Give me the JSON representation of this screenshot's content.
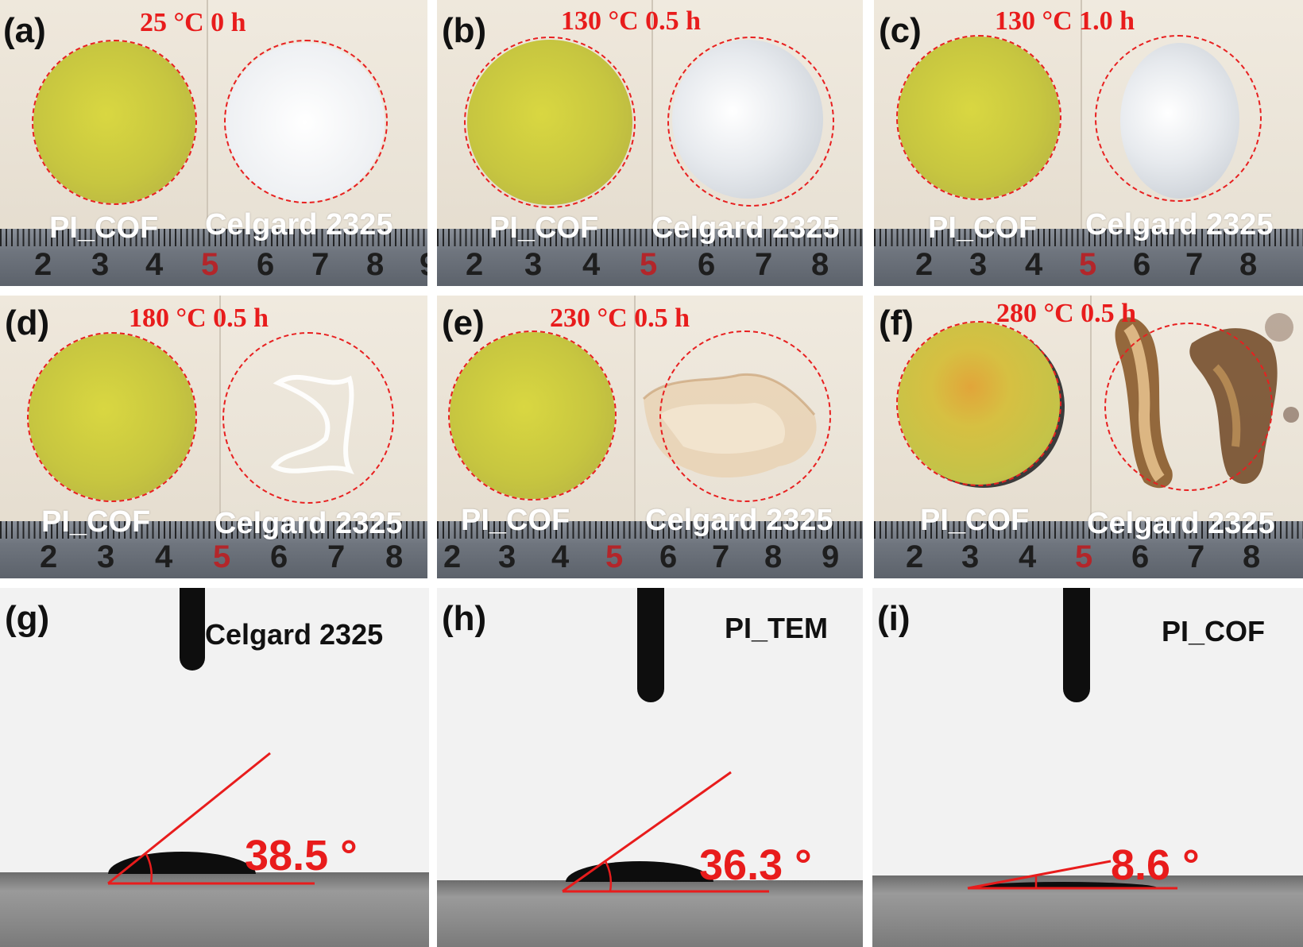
{
  "colors": {
    "annotation_red": "#e81c1c",
    "cof_yellow": "#c7c640",
    "celgard_white": "#eef0f3"
  },
  "ruler_numbers": {
    "p1": [
      "2",
      "3",
      "4",
      "5",
      "6",
      "7",
      "8",
      "9"
    ],
    "p2": [
      "2",
      "3",
      "4",
      "5",
      "6",
      "7",
      "8"
    ]
  },
  "panels": {
    "a": {
      "label": "(a)",
      "condition": "25 °C 0 h",
      "left_sample": "PI_COF",
      "right_sample": "Celgard 2325"
    },
    "b": {
      "label": "(b)",
      "condition": "130 °C 0.5 h",
      "left_sample": "PI_COF",
      "right_sample": "Celgard 2325"
    },
    "c": {
      "label": "(c)",
      "condition": "130 °C 1.0 h",
      "left_sample": "PI_COF",
      "right_sample": "Celgard 2325"
    },
    "d": {
      "label": "(d)",
      "condition": "180 °C 0.5 h",
      "left_sample": "PI_COF",
      "right_sample": "Celgard 2325"
    },
    "e": {
      "label": "(e)",
      "condition": "230 °C 0.5 h",
      "left_sample": "PI_COF",
      "right_sample": "Celgard 2325"
    },
    "f": {
      "label": "(f)",
      "condition": "280 °C 0.5 h",
      "left_sample": "PI_COF",
      "right_sample": "Celgard 2325"
    },
    "g": {
      "label": "(g)",
      "film": "Celgard 2325",
      "contact_angle": "38.5 °"
    },
    "h": {
      "label": "(h)",
      "film": "PI_TEM",
      "contact_angle": "36.3 °"
    },
    "i": {
      "label": "(i)",
      "film": "PI_COF",
      "contact_angle": "8.6 °"
    }
  }
}
